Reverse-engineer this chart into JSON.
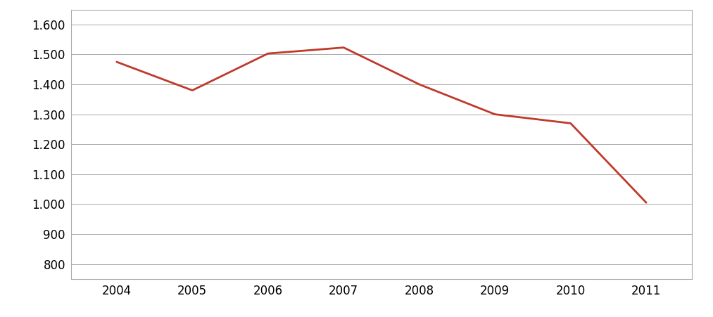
{
  "x": [
    2004,
    2005,
    2006,
    2007,
    2008,
    2009,
    2010,
    2011
  ],
  "y": [
    1475,
    1380,
    1503,
    1523,
    1400,
    1300,
    1270,
    1005
  ],
  "line_color": "#c0392b",
  "line_width": 2.0,
  "yticks": [
    800,
    900,
    1000,
    1100,
    1200,
    1300,
    1400,
    1500,
    1600
  ],
  "ytick_labels": [
    "800",
    "900",
    "1.000",
    "1.100",
    "1.200",
    "1.300",
    "1.400",
    "1.500",
    "1.600"
  ],
  "xticks": [
    2004,
    2005,
    2006,
    2007,
    2008,
    2009,
    2010,
    2011
  ],
  "ylim": [
    750,
    1650
  ],
  "xlim": [
    2003.4,
    2011.6
  ],
  "background_color": "#ffffff",
  "grid_color": "#aaaaaa",
  "tick_fontsize": 12,
  "border_color": "#aaaaaa"
}
